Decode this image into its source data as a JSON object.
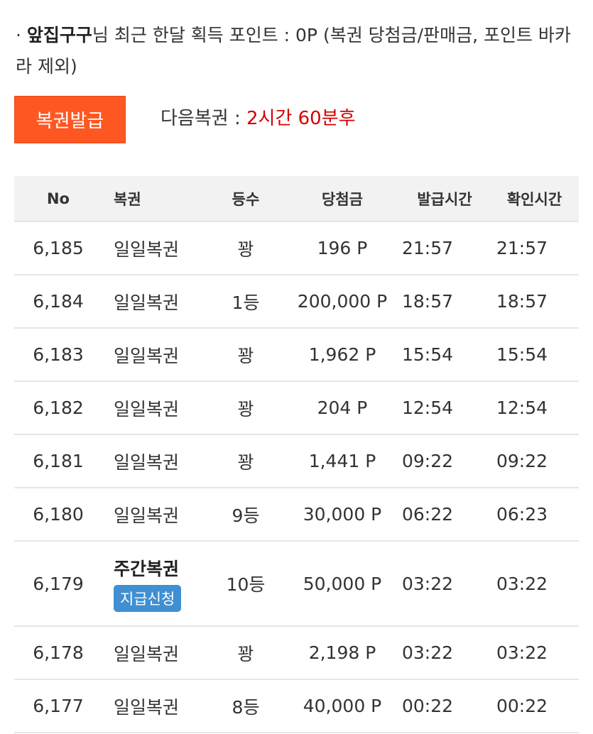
{
  "info": {
    "bullet": "·",
    "username": "앞집구구",
    "text": "님 최근 한달 획득 포인트 : 0P (복권 당첨금/판매금, 포인트 바카라 제외)"
  },
  "issue_button": "복권발급",
  "next_lottery": {
    "label": "다음복권 : ",
    "value": "2시간 60분후",
    "value_color": "#d50000"
  },
  "colors": {
    "accent": "#ff5722",
    "claim": "#3f8fd2"
  },
  "table": {
    "headers": [
      "No",
      "복권",
      "등수",
      "당첨금",
      "발급시간",
      "확인시간"
    ],
    "rows": [
      {
        "no": "6,185",
        "type": "일일복권",
        "rank": "꽝",
        "prize": "196 P",
        "issued": "21:57",
        "checked": "21:57"
      },
      {
        "no": "6,184",
        "type": "일일복권",
        "rank": "1등",
        "prize": "200,000 P",
        "issued": "18:57",
        "checked": "18:57"
      },
      {
        "no": "6,183",
        "type": "일일복권",
        "rank": "꽝",
        "prize": "1,962 P",
        "issued": "15:54",
        "checked": "15:54"
      },
      {
        "no": "6,182",
        "type": "일일복권",
        "rank": "꽝",
        "prize": "204 P",
        "issued": "12:54",
        "checked": "12:54"
      },
      {
        "no": "6,181",
        "type": "일일복권",
        "rank": "꽝",
        "prize": "1,441 P",
        "issued": "09:22",
        "checked": "09:22"
      },
      {
        "no": "6,180",
        "type": "일일복권",
        "rank": "9등",
        "prize": "30,000 P",
        "issued": "06:22",
        "checked": "06:23"
      },
      {
        "no": "6,179",
        "type": "주간복권",
        "claim": "지급신청",
        "rank": "10등",
        "prize": "50,000 P",
        "issued": "03:22",
        "checked": "03:22"
      },
      {
        "no": "6,178",
        "type": "일일복권",
        "rank": "꽝",
        "prize": "2,198 P",
        "issued": "03:22",
        "checked": "03:22"
      },
      {
        "no": "6,177",
        "type": "일일복권",
        "rank": "8등",
        "prize": "40,000 P",
        "issued": "00:22",
        "checked": "00:22"
      }
    ]
  }
}
